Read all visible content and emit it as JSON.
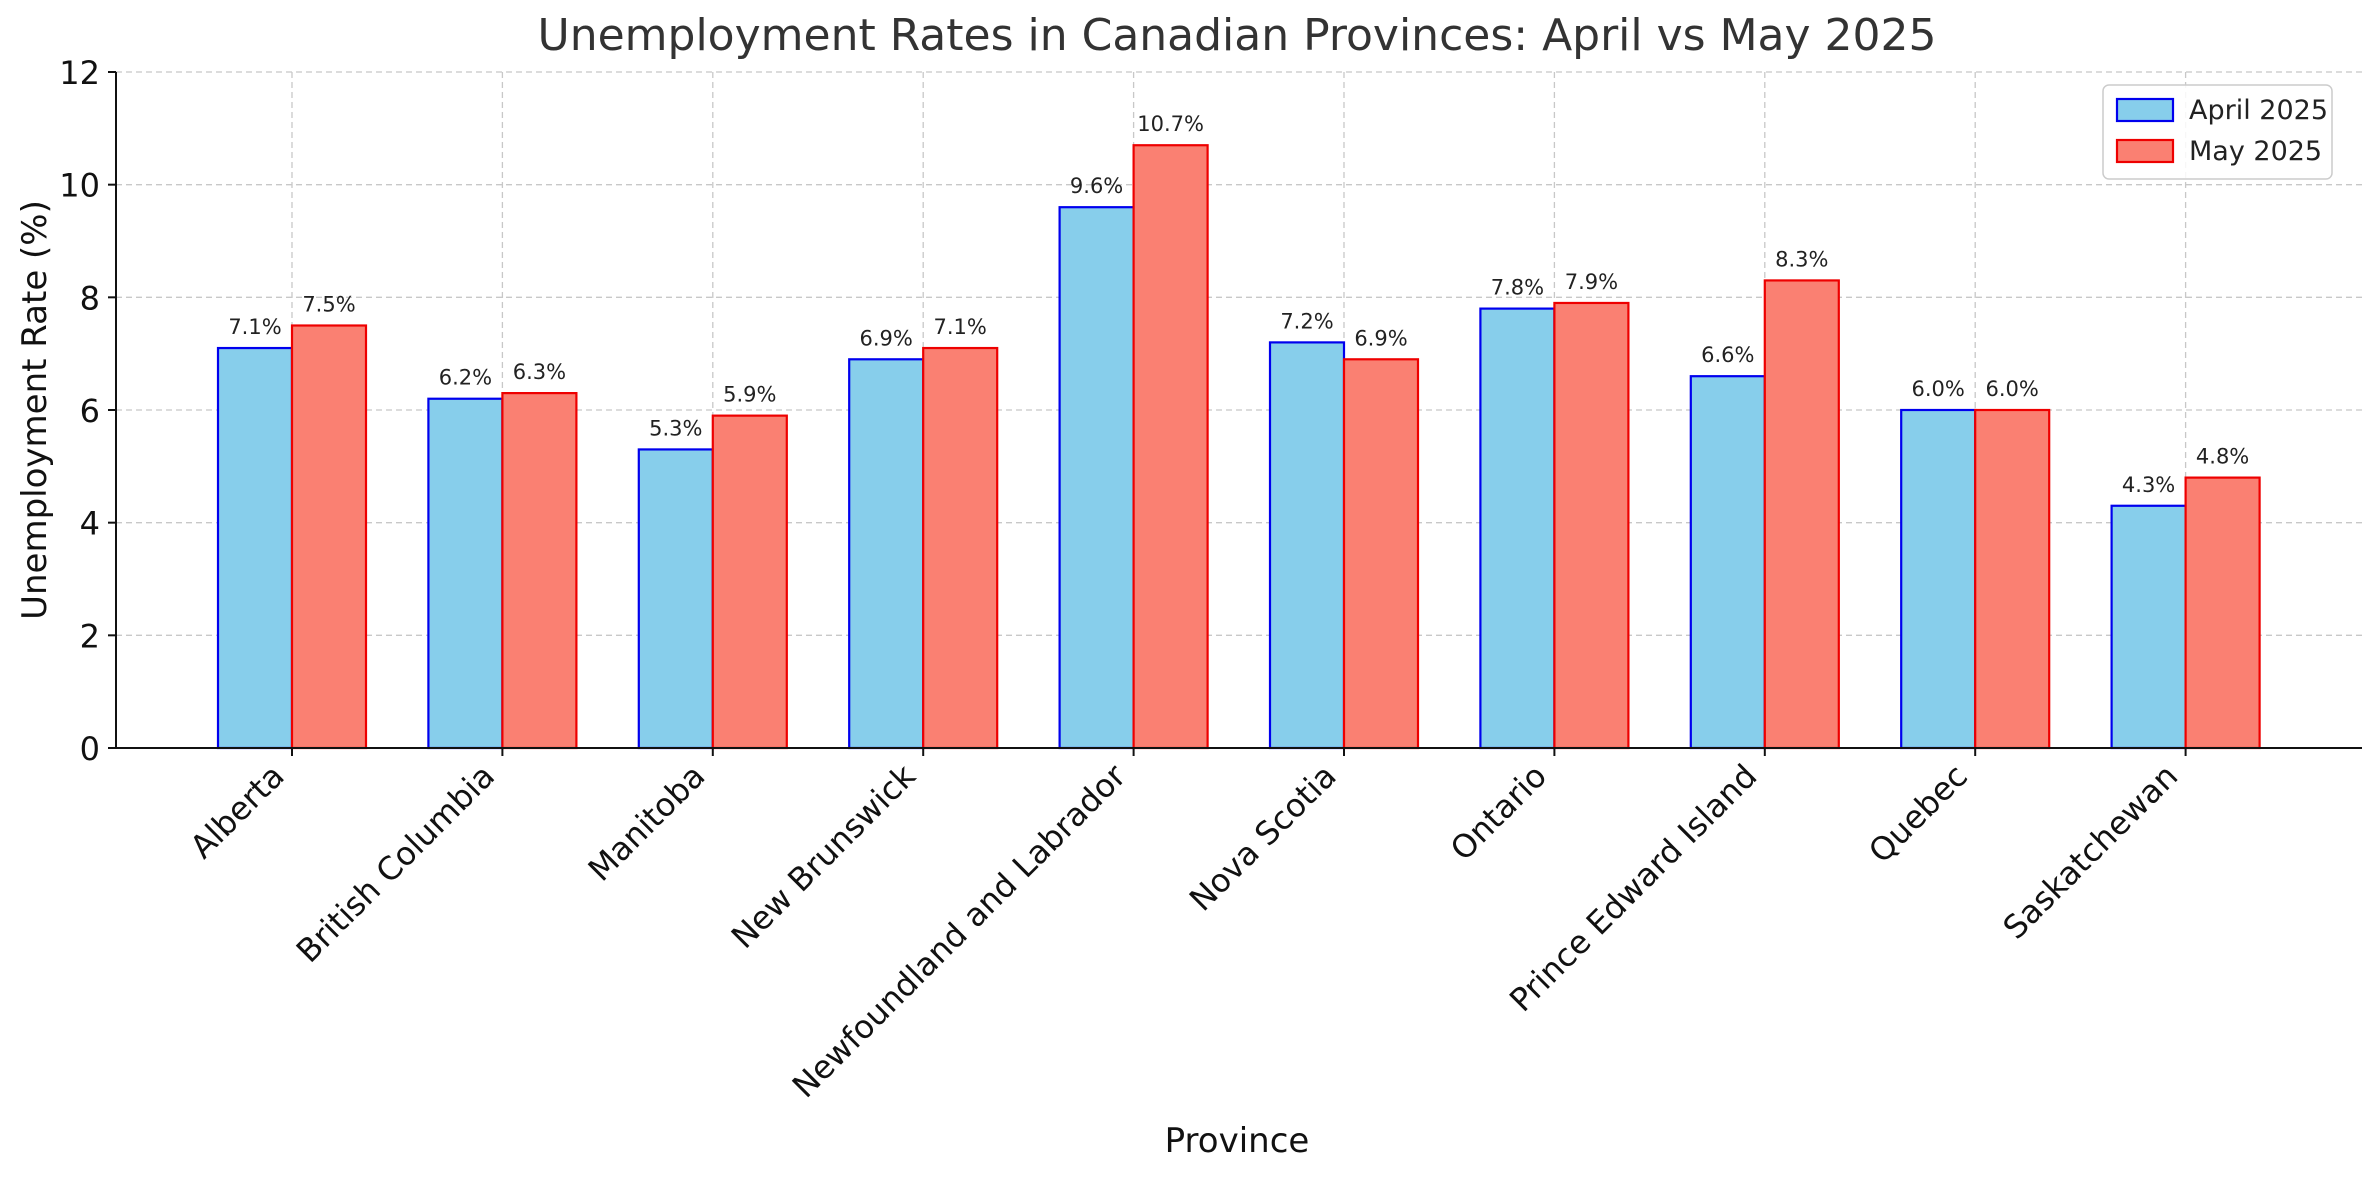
{
  "chart_data": {
    "type": "bar",
    "title": "Unemployment Rates in Canadian Provinces: April vs May 2025",
    "xlabel": "Province",
    "ylabel": "Unemployment Rate (%)",
    "ylim": [
      0,
      12
    ],
    "yticks": [
      0,
      2,
      4,
      6,
      8,
      10,
      12
    ],
    "grid": true,
    "legend_position": "top-right",
    "categories": [
      "Alberta",
      "British Columbia",
      "Manitoba",
      "New Brunswick",
      "Newfoundland and Labrador",
      "Nova Scotia",
      "Ontario",
      "Prince Edward Island",
      "Quebec",
      "Saskatchewan"
    ],
    "series": [
      {
        "name": "April 2025",
        "fill": "#87ceeb",
        "edge": "#0000ee",
        "values": [
          7.1,
          6.2,
          5.3,
          6.9,
          9.6,
          7.2,
          7.8,
          6.6,
          6.0,
          4.3
        ],
        "labels": [
          "7.1%",
          "6.2%",
          "5.3%",
          "6.9%",
          "9.6%",
          "7.2%",
          "7.8%",
          "6.6%",
          "6.0%",
          "4.3%"
        ]
      },
      {
        "name": "May 2025",
        "fill": "#fa8072",
        "edge": "#ee0000",
        "values": [
          7.5,
          6.3,
          5.9,
          7.1,
          10.7,
          6.9,
          7.9,
          8.3,
          6.0,
          4.8
        ],
        "labels": [
          "7.5%",
          "6.3%",
          "5.9%",
          "7.1%",
          "10.7%",
          "6.9%",
          "7.9%",
          "8.3%",
          "6.0%",
          "4.8%"
        ]
      }
    ]
  }
}
